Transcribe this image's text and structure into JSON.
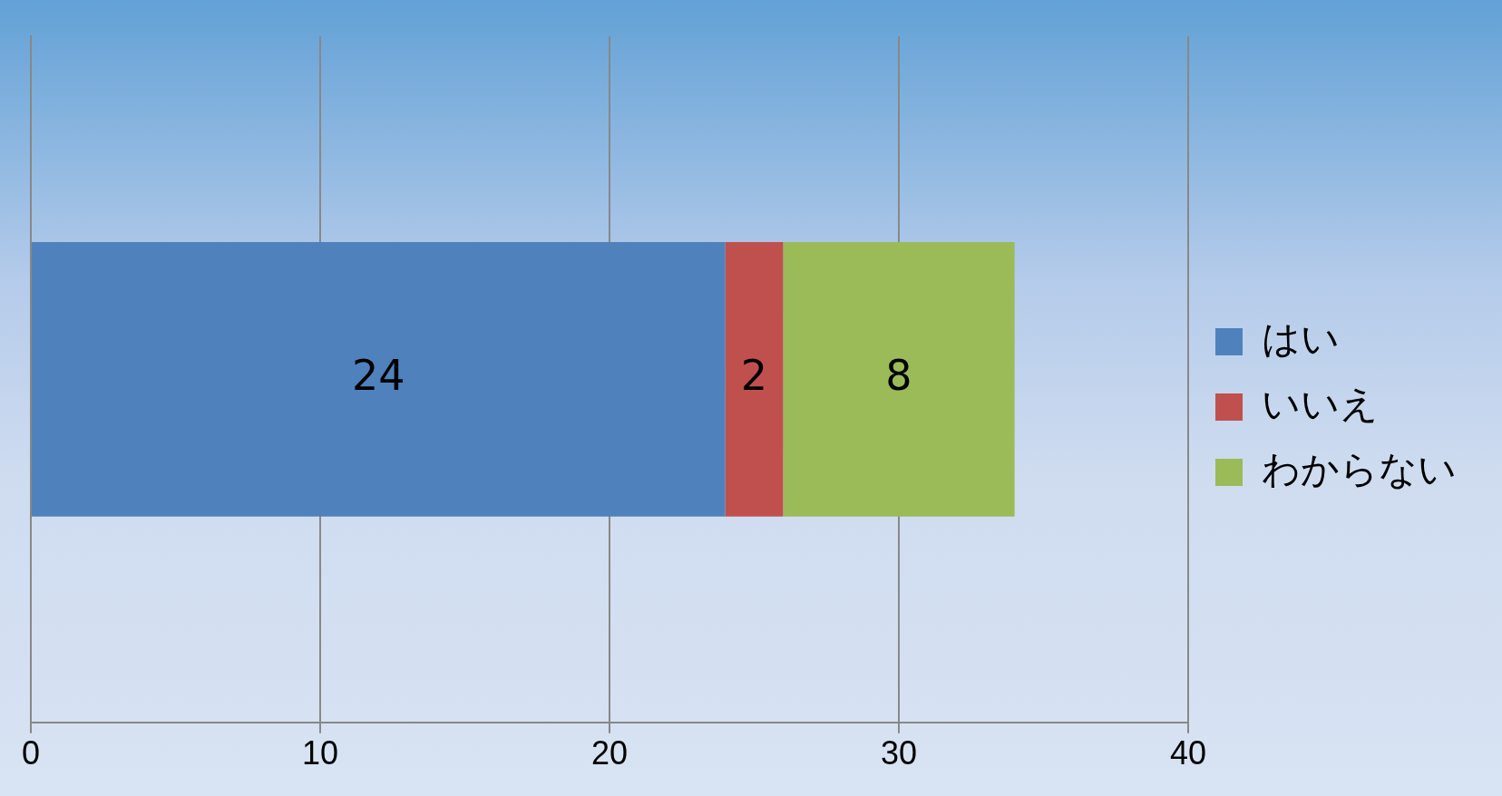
{
  "chart_data": {
    "type": "bar",
    "orientation": "horizontal",
    "stacked": true,
    "categories": [
      null
    ],
    "series": [
      {
        "name": "はい",
        "color": "#4f81bd",
        "values": [
          24
        ]
      },
      {
        "name": "いいえ",
        "color": "#c0504d",
        "values": [
          2
        ]
      },
      {
        "name": "わからない",
        "color": "#9bbb59",
        "values": [
          8
        ]
      }
    ],
    "xlim": [
      0,
      40
    ],
    "xticks": [
      0,
      10,
      20,
      30,
      40
    ],
    "grid": "x",
    "legend": "right",
    "data_labels": true
  }
}
